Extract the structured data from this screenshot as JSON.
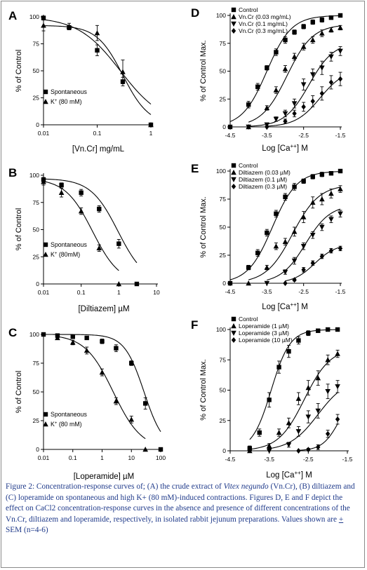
{
  "chart_data": [
    {
      "id": "A",
      "type": "line",
      "panel_label": "A",
      "xscale": "log",
      "xlim": [
        0.01,
        1
      ],
      "ylim": [
        0,
        100
      ],
      "xticks": [
        "0.01",
        "0.1",
        "1"
      ],
      "yticks": [
        "0",
        "25",
        "50",
        "75",
        "100"
      ],
      "xlabel_pre": "[Vn.Cr] mg/mL",
      "xlabel_sup": "",
      "xlabel_post": "",
      "ylabel": "% of Control",
      "legend_pos": "bottom-left",
      "series": [
        {
          "name": "Spontaneous",
          "name_sup": "",
          "name_post": "",
          "marker": "square",
          "x": [
            0.01,
            0.03,
            0.1,
            0.3,
            1
          ],
          "y": [
            99,
            90,
            69,
            40,
            0
          ],
          "err": [
            0,
            2,
            5,
            4,
            0
          ],
          "curve": {
            "top": 100,
            "bottom": 0,
            "ec50": 0.27,
            "hill": 1.1
          }
        },
        {
          "name": "K",
          "name_sup": "+",
          "name_post": " (80 mM)",
          "marker": "triangle-up",
          "x": [
            0.01,
            0.03,
            0.1,
            0.3,
            1
          ],
          "y": [
            92,
            91,
            85,
            49,
            0
          ],
          "err": [
            5,
            3,
            7,
            11,
            0
          ],
          "curve": {
            "top": 92,
            "bottom": 0,
            "ec50": 0.3,
            "hill": 1.8
          }
        }
      ]
    },
    {
      "id": "B",
      "type": "line",
      "panel_label": "B",
      "xscale": "log",
      "xlim": [
        0.01,
        10
      ],
      "ylim": [
        0,
        100
      ],
      "xticks": [
        "0.01",
        "0.1",
        "1",
        "10"
      ],
      "yticks": [
        "0",
        "25",
        "50",
        "75",
        "100"
      ],
      "xlabel_pre": "[Diltiazem] µM",
      "xlabel_sup": "",
      "xlabel_post": "",
      "ylabel": "% of Control",
      "legend_pos": "bottom-left",
      "series": [
        {
          "name": "Spontaneous",
          "name_sup": "",
          "name_post": "",
          "marker": "square",
          "x": [
            0.01,
            0.03,
            0.1,
            0.3,
            1,
            3
          ],
          "y": [
            96,
            91,
            84,
            69,
            37,
            0
          ],
          "err": [
            2,
            2,
            3,
            3,
            4,
            0
          ],
          "curve": {
            "top": 97,
            "bottom": 0,
            "ec50": 0.95,
            "hill": 1.2
          }
        },
        {
          "name": "K",
          "name_sup": "+",
          "name_post": " (80mM)",
          "marker": "triangle-up",
          "x": [
            0.01,
            0.03,
            0.1,
            0.3,
            1
          ],
          "y": [
            94,
            84,
            67,
            33,
            0
          ],
          "err": [
            3,
            4,
            3,
            3,
            0
          ],
          "curve": {
            "top": 97,
            "bottom": 0,
            "ec50": 0.2,
            "hill": 1.2
          }
        }
      ]
    },
    {
      "id": "C",
      "type": "line",
      "panel_label": "C",
      "xscale": "log",
      "xlim": [
        0.01,
        100
      ],
      "ylim": [
        0,
        100
      ],
      "xticks": [
        "0.01",
        "0.1",
        "1",
        "10",
        "100"
      ],
      "yticks": [
        "0",
        "25",
        "50",
        "75",
        "100"
      ],
      "xlabel_pre": "[Loperamide] µM",
      "xlabel_sup": "",
      "xlabel_post": "",
      "ylabel": "% of Control",
      "legend_pos": "bottom-left",
      "series": [
        {
          "name": "Spontaneous",
          "name_sup": "",
          "name_post": "",
          "marker": "square",
          "x": [
            0.01,
            0.03,
            0.1,
            0.3,
            1,
            3,
            10,
            30,
            100
          ],
          "y": [
            100,
            99,
            98,
            97,
            94,
            88,
            75,
            40,
            0
          ],
          "err": [
            0,
            0,
            1,
            1,
            2,
            3,
            2,
            5,
            0
          ],
          "curve": {
            "top": 100,
            "bottom": 0,
            "ec50": 27,
            "hill": 1.3
          }
        },
        {
          "name": "K",
          "name_sup": "+",
          "name_post": " (80 mM)",
          "marker": "triangle-up",
          "x": [
            0.03,
            0.1,
            0.3,
            1,
            3,
            10,
            30
          ],
          "y": [
            97,
            93,
            86,
            67,
            42,
            26,
            0
          ],
          "err": [
            1,
            2,
            3,
            3,
            3,
            3,
            0
          ],
          "curve": {
            "top": 100,
            "bottom": 0,
            "ec50": 2.4,
            "hill": 0.9
          }
        }
      ]
    },
    {
      "id": "D",
      "type": "line",
      "panel_label": "D",
      "xscale": "linear",
      "xlim": [
        -4.5,
        -1.5
      ],
      "ylim": [
        0,
        100
      ],
      "xticks": [
        "-4.5",
        "-3.5",
        "-2.5",
        "-1.5"
      ],
      "yticks": [
        "0",
        "25",
        "50",
        "75",
        "100"
      ],
      "xlabel_pre": "Log [Ca",
      "xlabel_sup": "++",
      "xlabel_post": "] M",
      "ylabel": "% of Control Max.",
      "legend_pos": "top-left",
      "series": [
        {
          "name": "Control",
          "name_sup": "",
          "name_post": "",
          "marker": "square",
          "x": [
            -4.5,
            -4,
            -3.75,
            -3.5,
            -3.25,
            -3,
            -2.75,
            -2.5,
            -2.25,
            -2,
            -1.75,
            -1.5
          ],
          "y": [
            0,
            20,
            36,
            53,
            67,
            78,
            85,
            90,
            94,
            96,
            98,
            100
          ],
          "err": [
            0,
            3,
            3,
            2,
            3,
            3,
            2,
            2,
            2,
            2,
            1,
            0
          ],
          "curve": {
            "top": 100,
            "bottom": 0,
            "ec50": -3.5,
            "hill": 1.3
          }
        },
        {
          "name": "Vn.Cr (0.03 mg/mL)",
          "name_sup": "",
          "name_post": "",
          "marker": "triangle-up",
          "x": [
            -4,
            -3.5,
            -3.25,
            -3,
            -2.75,
            -2.5,
            -2.25,
            -2,
            -1.75,
            -1.5
          ],
          "y": [
            0,
            17,
            33,
            52,
            63,
            72,
            78,
            84,
            87,
            89
          ],
          "err": [
            0,
            2,
            3,
            3,
            3,
            3,
            3,
            3,
            2,
            2
          ],
          "curve": {
            "top": 92,
            "bottom": 0,
            "ec50": -2.95,
            "hill": 1.25
          }
        },
        {
          "name": "Vn.Cr (0.1 mg/mL)",
          "name_sup": "",
          "name_post": "",
          "marker": "triangle-down",
          "x": [
            -4,
            -3.5,
            -3.25,
            -3,
            -2.75,
            -2.5,
            -2.25,
            -2,
            -1.75,
            -1.5
          ],
          "y": [
            0,
            2,
            7,
            12,
            21,
            38,
            47,
            53,
            63,
            68
          ],
          "err": [
            0,
            1,
            2,
            3,
            4,
            5,
            5,
            6,
            4,
            4
          ],
          "curve": {
            "top": 76,
            "bottom": 0,
            "ec50": -2.35,
            "hill": 1.3
          }
        },
        {
          "name": "Vn.Cr (0.3 mg/mL)",
          "name_sup": "",
          "name_post": "",
          "marker": "diamond",
          "x": [
            -3.5,
            -3,
            -2.75,
            -2.5,
            -2.25,
            -2,
            -1.75,
            -1.5
          ],
          "y": [
            0,
            5,
            12,
            18,
            23,
            30,
            40,
            43
          ],
          "err": [
            0,
            2,
            3,
            4,
            5,
            6,
            6,
            6
          ],
          "curve": {
            "top": 52,
            "bottom": 0,
            "ec50": -2.05,
            "hill": 1.3
          }
        }
      ]
    },
    {
      "id": "E",
      "type": "line",
      "panel_label": "E",
      "xscale": "linear",
      "xlim": [
        -4.5,
        -1.5
      ],
      "ylim": [
        0,
        100
      ],
      "xticks": [
        "-4.5",
        "-3.5",
        "-2.5",
        "-1.5"
      ],
      "yticks": [
        "0",
        "25",
        "50",
        "75",
        "100"
      ],
      "xlabel_pre": "Log [Ca",
      "xlabel_sup": "++",
      "xlabel_post": "] M",
      "ylabel": "% of Control Max.",
      "legend_pos": "top-left",
      "series": [
        {
          "name": "Control",
          "name_sup": "",
          "name_post": "",
          "marker": "square",
          "x": [
            -4.5,
            -4,
            -3.75,
            -3.5,
            -3.25,
            -3,
            -2.75,
            -2.5,
            -2.25,
            -2,
            -1.75,
            -1.5
          ],
          "y": [
            0,
            14,
            27,
            45,
            62,
            77,
            86,
            91,
            95,
            97,
            98,
            100
          ],
          "err": [
            0,
            2,
            3,
            3,
            3,
            3,
            3,
            2,
            2,
            2,
            1,
            0
          ],
          "curve": {
            "top": 100,
            "bottom": 0,
            "ec50": -3.35,
            "hill": 1.3
          }
        },
        {
          "name": "Diltiazem (0.03 µM)",
          "name_sup": "",
          "name_post": "",
          "marker": "triangle-up",
          "x": [
            -4,
            -3.5,
            -3.25,
            -3,
            -2.75,
            -2.5,
            -2.25,
            -2,
            -1.75,
            -1.5
          ],
          "y": [
            0,
            14,
            33,
            37,
            46,
            59,
            72,
            75,
            80,
            84
          ],
          "err": [
            0,
            2,
            3,
            3,
            4,
            5,
            5,
            5,
            4,
            3
          ],
          "curve": {
            "top": 88,
            "bottom": 0,
            "ec50": -2.8,
            "hill": 1.2
          }
        },
        {
          "name": "Diltiazem (0.1 µM)",
          "name_sup": "",
          "name_post": "",
          "marker": "triangle-down",
          "x": [
            -3.5,
            -3,
            -2.75,
            -2.5,
            -2.25,
            -2,
            -1.75,
            -1.5
          ],
          "y": [
            0,
            10,
            20,
            33,
            43,
            50,
            57,
            62
          ],
          "err": [
            0,
            2,
            3,
            3,
            3,
            3,
            3,
            3
          ],
          "curve": {
            "top": 70,
            "bottom": 0,
            "ec50": -2.45,
            "hill": 1.3
          }
        },
        {
          "name": "Diltiazem (0.3 µM)",
          "name_sup": "",
          "name_post": "",
          "marker": "diamond",
          "x": [
            -3,
            -2.75,
            -2.5,
            -2.25,
            -2,
            -1.75,
            -1.5
          ],
          "y": [
            0,
            3,
            12,
            18,
            24,
            29,
            31
          ],
          "err": [
            0,
            1,
            2,
            2,
            2,
            2,
            2
          ],
          "curve": {
            "top": 35,
            "bottom": 0,
            "ec50": -2.2,
            "hill": 1.5
          }
        }
      ]
    },
    {
      "id": "F",
      "type": "line",
      "panel_label": "F",
      "xscale": "linear",
      "xlim": [
        -4.5,
        -1.5
      ],
      "ylim": [
        0,
        100
      ],
      "xticks": [
        "-4.5",
        "-3.5",
        "-2.5",
        "-1.5"
      ],
      "yticks": [
        "0",
        "25",
        "50",
        "75",
        "100"
      ],
      "xlabel_pre": "Log [Ca",
      "xlabel_sup": "++",
      "xlabel_post": "] M",
      "ylabel": "% of Control Max.",
      "legend_pos": "top-left",
      "series": [
        {
          "name": "Control",
          "name_sup": "",
          "name_post": "",
          "marker": "square",
          "x": [
            -4,
            -3.75,
            -3.5,
            -3.25,
            -3,
            -2.75,
            -2.5,
            -2.25,
            -2,
            -1.75
          ],
          "y": [
            2,
            15,
            42,
            69,
            82,
            91,
            97,
            99,
            100,
            100
          ],
          "err": [
            2,
            3,
            6,
            5,
            5,
            3,
            2,
            1,
            1,
            1
          ],
          "curve": {
            "top": 100,
            "bottom": 0,
            "ec50": -3.45,
            "hill": 1.8
          }
        },
        {
          "name": "Loperamide (1 µM)",
          "name_sup": "",
          "name_post": "",
          "marker": "triangle-up",
          "x": [
            -4,
            -3.5,
            -3.25,
            -3,
            -2.75,
            -2.5,
            -2.25,
            -2,
            -1.75
          ],
          "y": [
            0,
            4,
            15,
            23,
            43,
            52,
            60,
            75,
            80
          ],
          "err": [
            0,
            2,
            3,
            4,
            5,
            6,
            6,
            4,
            3
          ],
          "curve": {
            "top": 85,
            "bottom": 0,
            "ec50": -2.6,
            "hill": 1.3
          }
        },
        {
          "name": "Loperamide (3 µM)",
          "name_sup": "",
          "name_post": "",
          "marker": "triangle-down",
          "x": [
            -3.5,
            -3,
            -2.75,
            -2.5,
            -2.25,
            -2,
            -1.75
          ],
          "y": [
            0,
            5,
            16,
            28,
            33,
            49,
            53
          ],
          "err": [
            0,
            2,
            4,
            5,
            6,
            6,
            5
          ],
          "curve": {
            "top": 60,
            "bottom": 0,
            "ec50": -2.25,
            "hill": 1.2
          }
        },
        {
          "name": "Loperamide (10 µM)",
          "name_sup": "",
          "name_post": "",
          "marker": "diamond",
          "x": [
            -2.75,
            -2.5,
            -2.25,
            -2,
            -1.75
          ],
          "y": [
            0,
            1,
            3,
            14,
            26
          ],
          "err": [
            0,
            1,
            2,
            3,
            4
          ],
          "curve": {
            "top": 50,
            "bottom": 0,
            "ec50": -1.7,
            "hill": 2.0
          }
        }
      ]
    }
  ],
  "caption": {
    "p1": "Figure 2: Concentration-response curves of; (A) the crude extract of ",
    "italic": "Vitex negundo",
    "p2": " (Vn.Cr), (B) diltiazem and (C) loperamide on spontaneous and high K+ (80 mM)-induced contractions. Figures D, E and F depict the effect on CaCl2 concentration-response curves in the absence and presence of different concentrations of the Vn.Cr, diltiazem and loperamide, respectively, in isolated rabbit jejunum preparations. Values shown are ",
    "pm": "+",
    "p3": " SEM (n=4-6)"
  }
}
